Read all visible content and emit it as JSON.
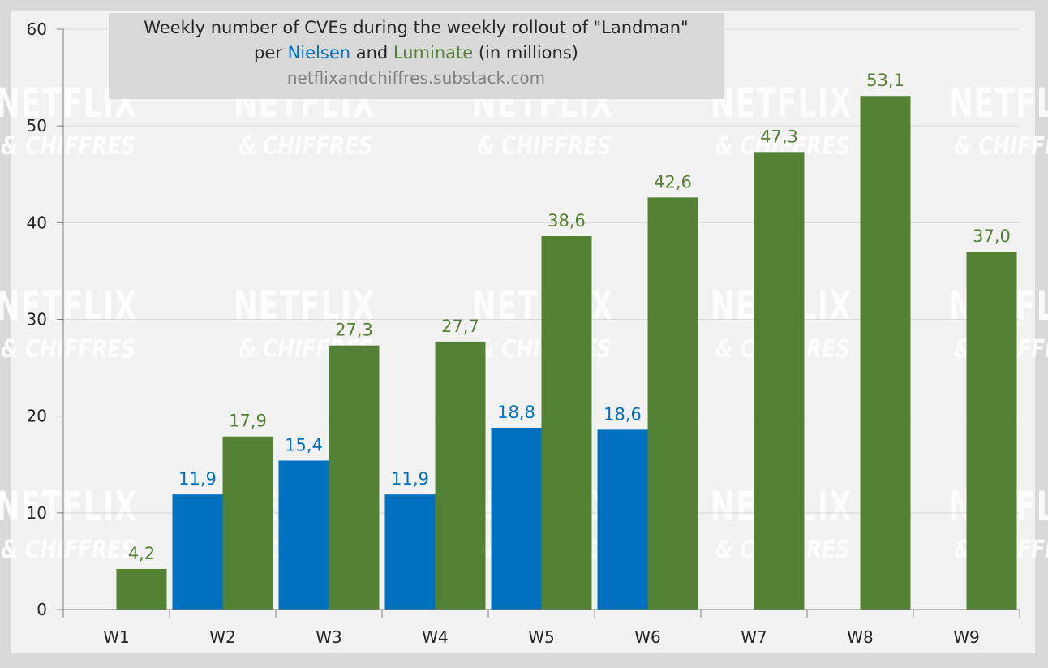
{
  "colors": {
    "nielsen": "#0070c0",
    "luminate": "#548235",
    "background": "#d9d9d9",
    "plot_background": "#f2f2f2",
    "gridline": "#d9d9d9",
    "watermark": "#ffffff"
  },
  "title": {
    "line1": "Weekly number of CVEs during the weekly rollout of \"Landman\"",
    "line2_prefix": "per ",
    "line2_nielsen": "Nielsen",
    "line2_middle": " and ",
    "line2_luminate": "Luminate",
    "line2_suffix": " (in millions)",
    "source": "netflixandchiffres.substack.com"
  },
  "watermark": {
    "line1": "NETFLIX",
    "line2": "& CHIFFRES"
  },
  "chart_data": {
    "type": "bar",
    "categories": [
      "W1",
      "W2",
      "W3",
      "W4",
      "W5",
      "W6",
      "W7",
      "W8",
      "W9"
    ],
    "series": [
      {
        "name": "Nielsen",
        "values": [
          null,
          11.9,
          15.4,
          11.9,
          18.8,
          18.6,
          null,
          null,
          null
        ],
        "labels": [
          "",
          "11,9",
          "15,4",
          "11,9",
          "18,8",
          "18,6",
          "",
          "",
          ""
        ]
      },
      {
        "name": "Luminate",
        "values": [
          4.2,
          17.9,
          27.3,
          27.7,
          38.6,
          42.6,
          47.3,
          53.1,
          37.0
        ],
        "labels": [
          "4,2",
          "17,9",
          "27,3",
          "27,7",
          "38,6",
          "42,6",
          "47,3",
          "53,1",
          "37,0"
        ]
      }
    ],
    "ylim": [
      0,
      60
    ],
    "yticks": [
      "0",
      "10",
      "20",
      "30",
      "40",
      "50",
      "60"
    ],
    "grid": true,
    "legend": "in title"
  }
}
